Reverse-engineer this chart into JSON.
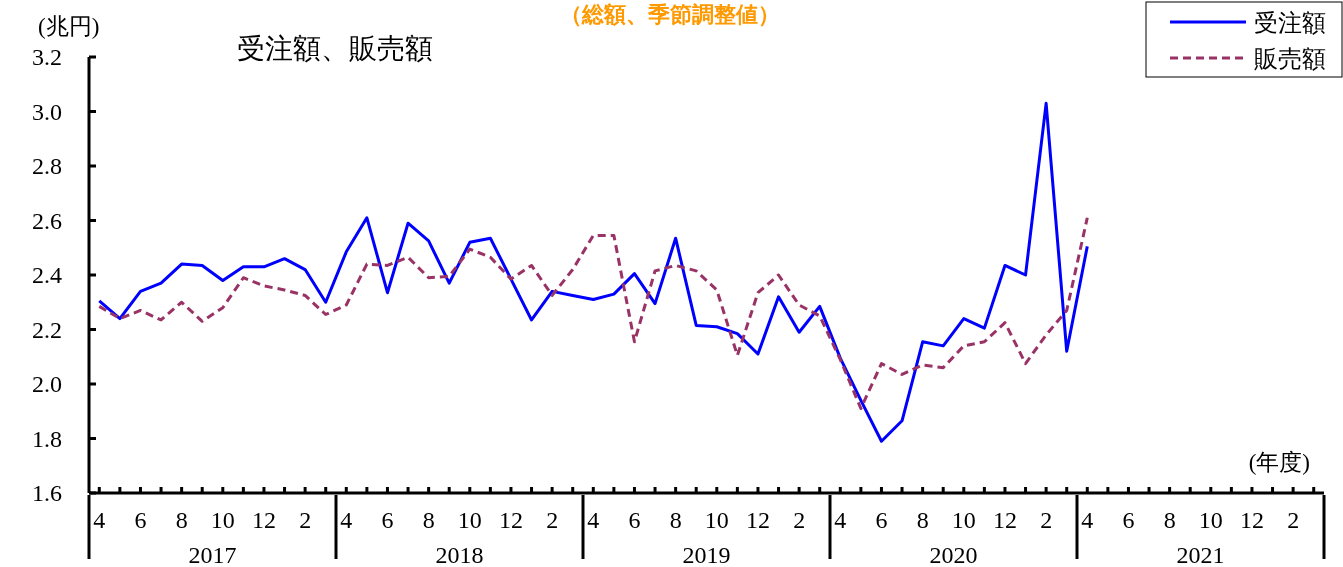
{
  "chart_data": {
    "type": "line",
    "title": "受注額、販売額",
    "subtitle": "（総額、季節調整値）",
    "ylabel": "(兆円)",
    "xlabel": "(年度)",
    "categories": [
      "4",
      null,
      "6",
      null,
      "8",
      null,
      "10",
      null,
      "12",
      null,
      "2",
      null,
      "4",
      null,
      "6",
      null,
      "8",
      null,
      "10",
      null,
      "12",
      null,
      "2",
      null,
      "4",
      null,
      "6",
      null,
      "8",
      null,
      "10",
      null,
      "12",
      null,
      "2",
      null,
      "4",
      null,
      "6",
      null,
      "8",
      null,
      "10",
      null,
      "12",
      null,
      "2",
      null,
      "4",
      null,
      "6",
      null,
      "8",
      null,
      "10",
      null,
      "12",
      null,
      "2",
      null
    ],
    "annotations": [
      "2017",
      "2018",
      "2019",
      "2020",
      "2021"
    ],
    "ylim": [
      1.6,
      3.2
    ],
    "yticks": [
      1.6,
      1.8,
      {
        "value": 2,
        "label": "2.0"
      },
      2.2,
      2.4,
      2.6,
      2.8,
      {
        "value": 3,
        "label": "3.0"
      },
      3.2
    ],
    "legend": "top right",
    "grid": false,
    "series": [
      {
        "name": "受注額",
        "color": "#0000ff",
        "line_style": "solid",
        "values": [
          2.305,
          2.24,
          2.34,
          2.37,
          2.44,
          2.435,
          2.38,
          2.43,
          2.43,
          2.46,
          2.42,
          2.3,
          2.485,
          2.61,
          2.335,
          2.59,
          2.525,
          2.37,
          2.52,
          2.535,
          2.385,
          2.235,
          2.34,
          2.325,
          2.31,
          2.33,
          2.405,
          2.295,
          2.535,
          2.215,
          2.21,
          2.185,
          2.11,
          2.32,
          2.19,
          2.285,
          2.095,
          1.94,
          1.79,
          1.865,
          2.155,
          2.14,
          2.24,
          2.205,
          2.435,
          2.4,
          3.03,
          2.12,
          2.505,
          null,
          null,
          null,
          null,
          null,
          null,
          null,
          null,
          null,
          null,
          null
        ]
      },
      {
        "name": "販売額",
        "color": "#993366",
        "line_style": "dashed",
        "values": [
          2.285,
          2.24,
          2.27,
          2.235,
          2.3,
          2.23,
          2.28,
          2.39,
          2.36,
          2.345,
          2.325,
          2.255,
          2.29,
          2.44,
          2.435,
          2.465,
          2.39,
          2.395,
          2.495,
          2.465,
          2.385,
          2.435,
          2.325,
          2.42,
          2.545,
          2.545,
          2.155,
          2.415,
          2.435,
          2.415,
          2.345,
          2.105,
          2.335,
          2.4,
          2.29,
          2.25,
          2.09,
          1.91,
          2.075,
          2.035,
          2.07,
          2.06,
          2.14,
          2.155,
          2.225,
          2.075,
          2.18,
          2.27,
          2.61,
          null,
          null,
          null,
          null,
          null,
          null,
          null,
          null,
          null,
          null,
          null
        ]
      }
    ]
  }
}
